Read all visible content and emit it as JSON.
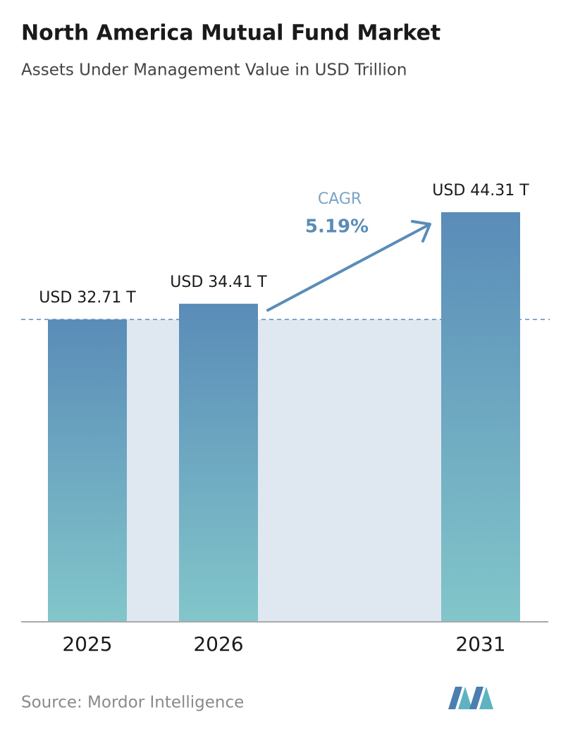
{
  "chart_data": {
    "type": "bar",
    "title": "North America Mutual Fund Market",
    "subtitle": "Assets Under Management Value in USD Trillion",
    "categories": [
      "2025",
      "2026",
      "2031"
    ],
    "values": [
      32.71,
      34.41,
      44.31
    ],
    "value_labels": [
      "USD 32.71 T",
      "USD 34.41 T",
      "USD 44.31 T"
    ],
    "color_top": "#5a8cb8",
    "color_bottom": "#82c6ca",
    "annotation": {
      "label": "CAGR",
      "value": "5.19%"
    },
    "source": "Source:  Mordor Intelligence"
  }
}
